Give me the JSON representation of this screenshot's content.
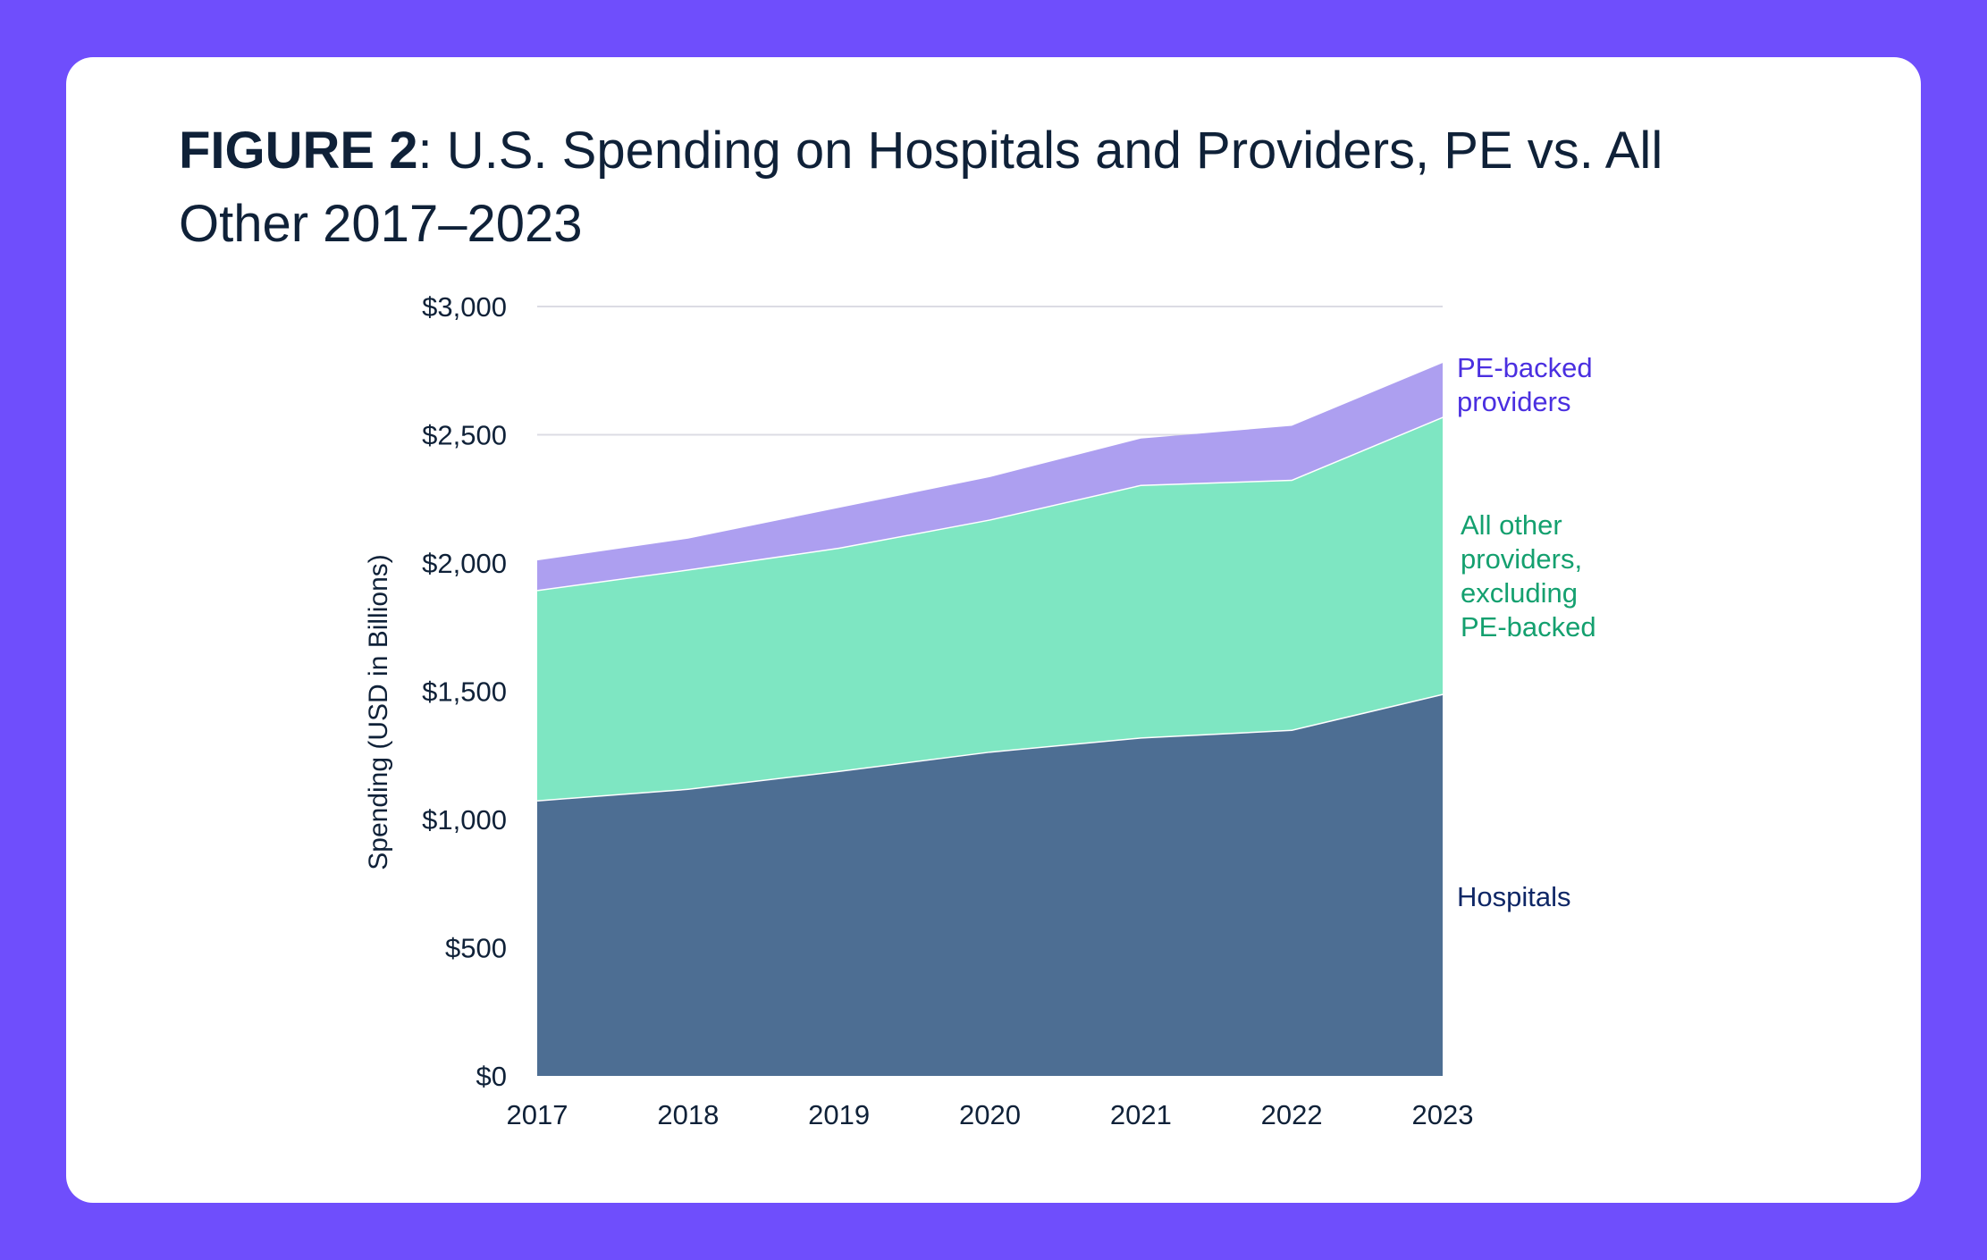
{
  "title": {
    "prefix": "FIGURE 2",
    "text": ": U.S. Spending on Hospitals and Providers, PE vs. All Other 2017–2023"
  },
  "chart_data": {
    "type": "area",
    "stacked": true,
    "x": [
      "2017",
      "2018",
      "2019",
      "2020",
      "2021",
      "2022",
      "2023"
    ],
    "ylabel": "Spending (USD in Billions)",
    "ylim": [
      0,
      3000
    ],
    "yticks": [
      "$0",
      "$500",
      "$1,000",
      "$1,500",
      "$2,000",
      "$2,500",
      "$3,000"
    ],
    "ytick_values": [
      0,
      500,
      1000,
      1500,
      2000,
      2500,
      3000
    ],
    "grid": true,
    "legend": "right-side inline labels",
    "series": [
      {
        "name": "Hospitals",
        "label_lines": [
          "Hospitals"
        ],
        "values": [
          1075,
          1120,
          1190,
          1265,
          1320,
          1350,
          1490
        ],
        "color": "#4d6e93",
        "label_color": "#0f2766"
      },
      {
        "name": "All other providers, excluding PE-backed",
        "label_lines": [
          "All other",
          "providers,",
          "excluding",
          "PE-backed"
        ],
        "values": [
          820,
          855,
          870,
          905,
          985,
          975,
          1080
        ],
        "color": "#7ee6c2",
        "label_color": "#14a06f"
      },
      {
        "name": "PE-backed providers",
        "label_lines": [
          "PE-backed",
          "providers"
        ],
        "values": [
          115,
          120,
          155,
          165,
          180,
          210,
          210
        ],
        "color": "#ad9ff0",
        "label_color": "#4a2fe0"
      }
    ]
  }
}
